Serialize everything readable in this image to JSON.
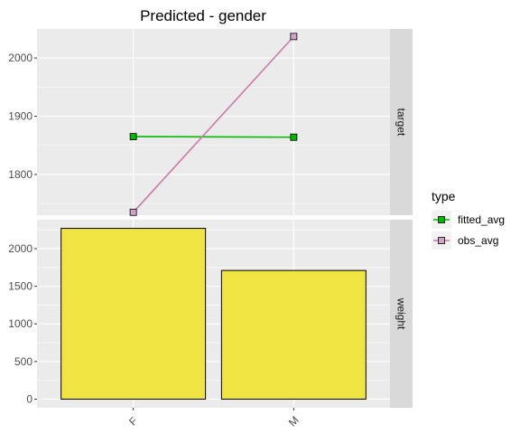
{
  "chart_data": {
    "type": "faceted",
    "title": "Predicted - gender",
    "categories": [
      "F",
      "M"
    ],
    "colors": {
      "fitted_avg": "#00ba00",
      "obs_avg": "#d1a3cb",
      "obs_avg_line": "#cc79a7",
      "bar_fill": "#f0e442",
      "panel_bg": "#ebebeb",
      "strip_bg": "#d9d9d9"
    },
    "facets": [
      {
        "strip_label": "target",
        "type": "line",
        "ylim": [
          1730,
          2050
        ],
        "yticks": [
          1800,
          1900,
          2000
        ],
        "series": [
          {
            "name": "fitted_avg",
            "values": [
              1865,
              1864
            ]
          },
          {
            "name": "obs_avg",
            "values": [
              1735,
              2037
            ]
          }
        ]
      },
      {
        "strip_label": "weight",
        "type": "bar",
        "ylim": [
          -115,
          2385
        ],
        "yticks": [
          0,
          500,
          1000,
          1500,
          2000
        ],
        "values": [
          2270,
          1710
        ]
      }
    ],
    "legend": {
      "title": "type",
      "placement": "right",
      "items": [
        "fitted_avg",
        "obs_avg"
      ]
    }
  }
}
